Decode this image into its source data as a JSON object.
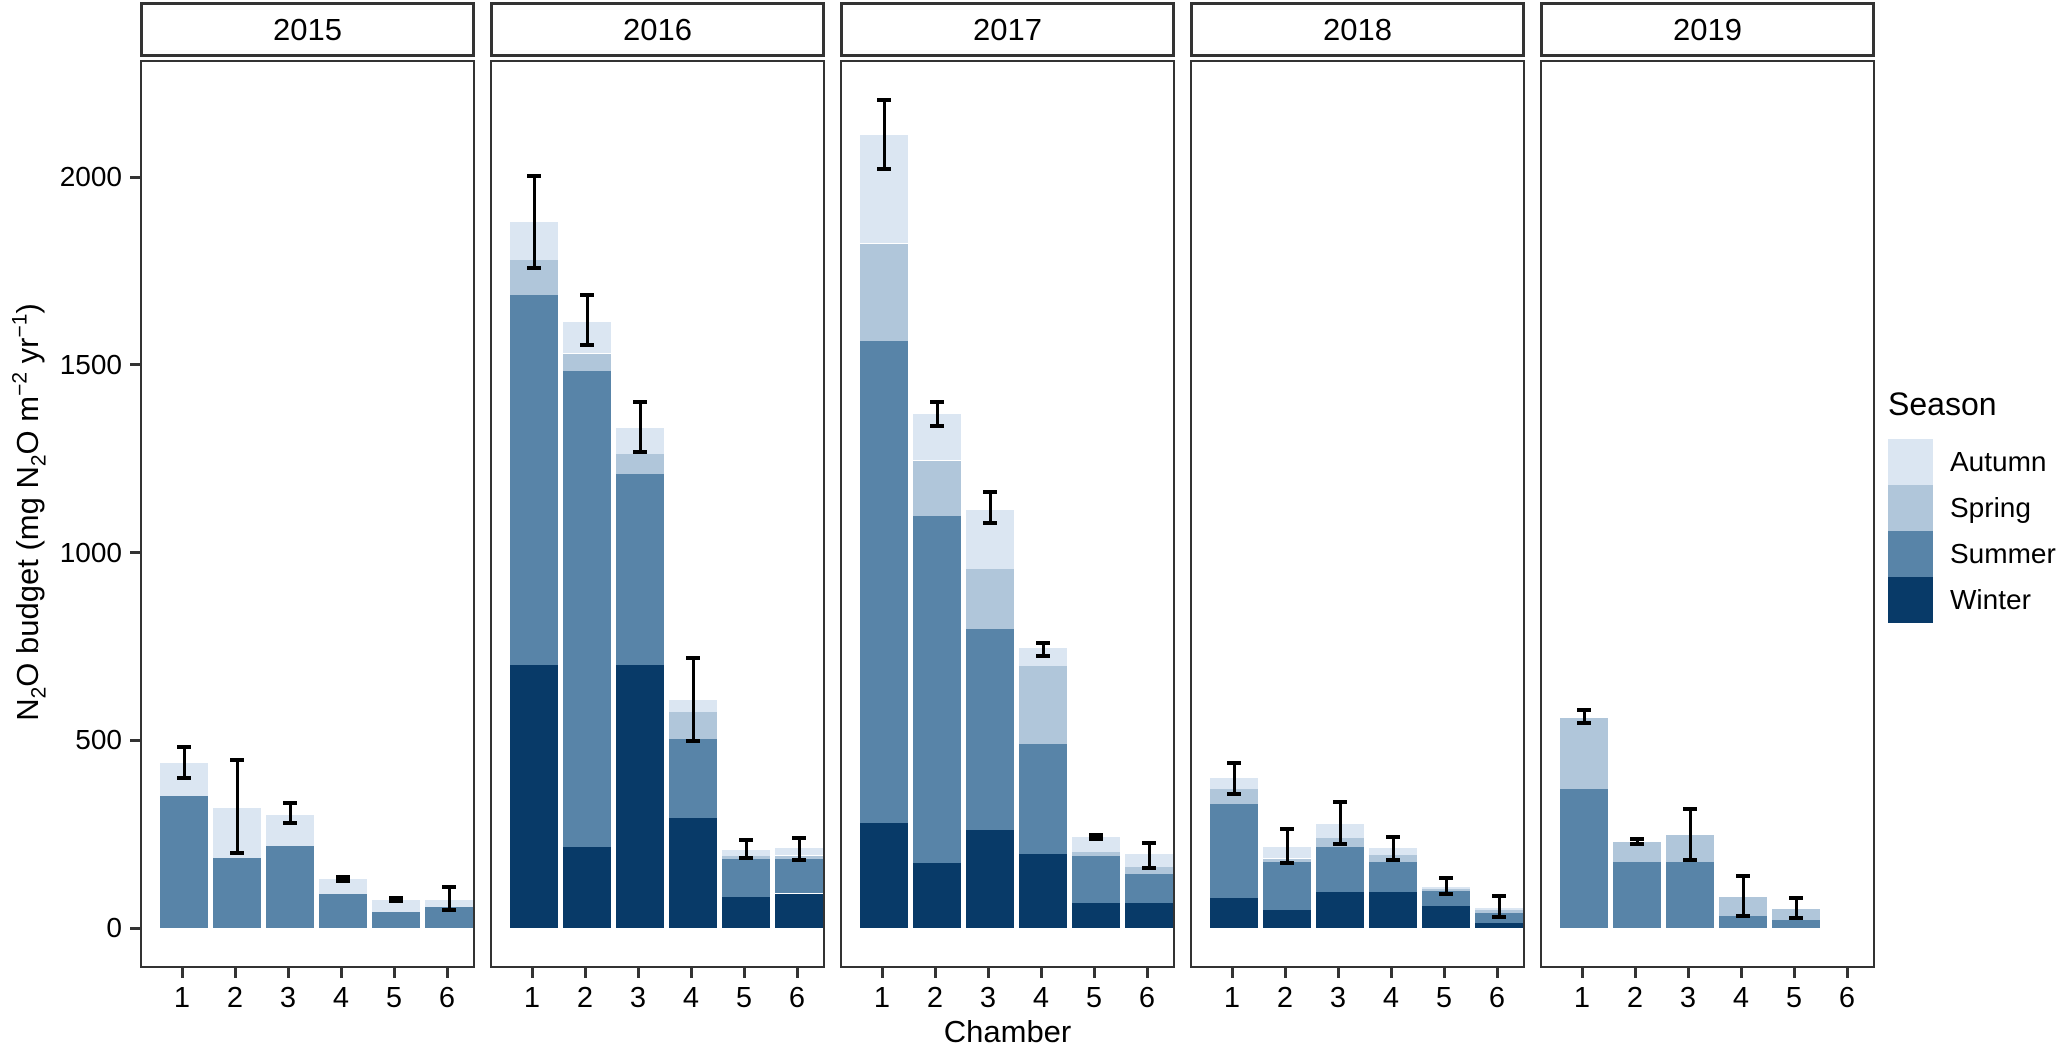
{
  "chart_data": {
    "type": "bar",
    "stacked": true,
    "faceted_by": "year",
    "xlabel": "Chamber",
    "ylabel_plain": "N2O budget (mg N2O m-2 yr-1)",
    "ylabel_parts": [
      {
        "t": "N"
      },
      {
        "sub": "2"
      },
      {
        "t": "O budget (mg N"
      },
      {
        "sub": "2"
      },
      {
        "t": "O m"
      },
      {
        "sup": "−2"
      },
      {
        "t": " yr"
      },
      {
        "sup": "−1"
      },
      {
        "t": ")"
      }
    ],
    "yticks": [
      0,
      500,
      1000,
      1500,
      2000
    ],
    "ylim": [
      -107,
      2311
    ],
    "xticks": [
      "1",
      "2",
      "3",
      "4",
      "5",
      "6"
    ],
    "grid": "off",
    "error_bars": "on totals, with caps",
    "legend": {
      "position": "right",
      "title": "Season",
      "entries": [
        "Autumn",
        "Spring",
        "Summer",
        "Winter"
      ]
    },
    "stack_order_bottom_to_top": [
      "Winter",
      "Summer",
      "Spring",
      "Autumn"
    ],
    "colors": {
      "Autumn": "#dbe6f2",
      "Spring": "#b0c6da",
      "Summer": "#5884a8",
      "Winter": "#083a68"
    },
    "facets": [
      {
        "year": "2015",
        "bars": [
          {
            "chamber": "1",
            "Winter": 0,
            "Summer": 352,
            "Spring": 0,
            "Autumn": 88,
            "err": [
              399,
              481
            ]
          },
          {
            "chamber": "2",
            "Winter": 0,
            "Summer": 186,
            "Spring": 0,
            "Autumn": 135,
            "err": [
              199,
              447
            ]
          },
          {
            "chamber": "3",
            "Winter": 0,
            "Summer": 218,
            "Spring": 0,
            "Autumn": 83,
            "err": [
              279,
              332
            ]
          },
          {
            "chamber": "4",
            "Winter": 0,
            "Summer": 90,
            "Spring": 0,
            "Autumn": 40,
            "err": [
              125,
              136
            ]
          },
          {
            "chamber": "5",
            "Winter": 0,
            "Summer": 43,
            "Spring": 0,
            "Autumn": 33,
            "err": [
              71,
              81
            ]
          },
          {
            "chamber": "6",
            "Winter": 0,
            "Summer": 55,
            "Spring": 0,
            "Autumn": 20,
            "err": [
              48,
              110
            ]
          }
        ]
      },
      {
        "year": "2016",
        "bars": [
          {
            "chamber": "1",
            "Winter": 700,
            "Summer": 985,
            "Spring": 95,
            "Autumn": 100,
            "err": [
              1759,
              2004
            ]
          },
          {
            "chamber": "2",
            "Winter": 216,
            "Summer": 1268,
            "Spring": 46,
            "Autumn": 84,
            "err": [
              1553,
              1686
            ]
          },
          {
            "chamber": "3",
            "Winter": 700,
            "Summer": 509,
            "Spring": 53,
            "Autumn": 71,
            "err": [
              1268,
              1402
            ]
          },
          {
            "chamber": "4",
            "Winter": 292,
            "Summer": 212,
            "Spring": 71,
            "Autumn": 31,
            "err": [
              499,
              718
            ]
          },
          {
            "chamber": "5",
            "Winter": 83,
            "Summer": 102,
            "Spring": 8,
            "Autumn": 16,
            "err": [
              186,
              234
            ]
          },
          {
            "chamber": "6",
            "Winter": 92,
            "Summer": 93,
            "Spring": 8,
            "Autumn": 19,
            "err": [
              181,
              239
            ]
          }
        ]
      },
      {
        "year": "2017",
        "bars": [
          {
            "chamber": "1",
            "Winter": 280,
            "Summer": 1284,
            "Spring": 259,
            "Autumn": 288,
            "err": [
              2022,
              2204
            ]
          },
          {
            "chamber": "2",
            "Winter": 172,
            "Summer": 926,
            "Spring": 147,
            "Autumn": 124,
            "err": [
              1338,
              1400
            ]
          },
          {
            "chamber": "3",
            "Winter": 262,
            "Summer": 535,
            "Spring": 159,
            "Autumn": 157,
            "err": [
              1079,
              1162
            ]
          },
          {
            "chamber": "4",
            "Winter": 198,
            "Summer": 293,
            "Spring": 206,
            "Autumn": 48,
            "err": [
              724,
              760
            ]
          },
          {
            "chamber": "5",
            "Winter": 66,
            "Summer": 125,
            "Spring": 12,
            "Autumn": 40,
            "err": [
              237,
              249
            ]
          },
          {
            "chamber": "6",
            "Winter": 66,
            "Summer": 79,
            "Spring": 18,
            "Autumn": 33,
            "err": [
              159,
              227
            ]
          }
        ]
      },
      {
        "year": "2018",
        "bars": [
          {
            "chamber": "1",
            "Winter": 80,
            "Summer": 251,
            "Spring": 40,
            "Autumn": 29,
            "err": [
              358,
              440
            ]
          },
          {
            "chamber": "2",
            "Winter": 48,
            "Summer": 128,
            "Spring": 9,
            "Autumn": 31,
            "err": [
              172,
              265
            ]
          },
          {
            "chamber": "3",
            "Winter": 97,
            "Summer": 119,
            "Spring": 23,
            "Autumn": 39,
            "err": [
              223,
              336
            ]
          },
          {
            "chamber": "4",
            "Winter": 97,
            "Summer": 79,
            "Spring": 18,
            "Autumn": 18,
            "err": [
              181,
              243
            ]
          },
          {
            "chamber": "5",
            "Winter": 59,
            "Summer": 39,
            "Spring": 5,
            "Autumn": 7,
            "err": [
              90,
              134
            ]
          },
          {
            "chamber": "6",
            "Winter": 14,
            "Summer": 27,
            "Spring": 6,
            "Autumn": 7,
            "err": [
              30,
              85
            ]
          }
        ]
      },
      {
        "year": "2019",
        "bars": [
          {
            "chamber": "1",
            "Winter": 0,
            "Summer": 371,
            "Spring": 189,
            "Autumn": 0,
            "err": [
              546,
              581
            ]
          },
          {
            "chamber": "2",
            "Winter": 0,
            "Summer": 176,
            "Spring": 54,
            "Autumn": 0,
            "err": [
              225,
              237
            ]
          },
          {
            "chamber": "3",
            "Winter": 0,
            "Summer": 176,
            "Spring": 71,
            "Autumn": 0,
            "err": [
              182,
              318
            ]
          },
          {
            "chamber": "4",
            "Winter": 0,
            "Summer": 32,
            "Spring": 52,
            "Autumn": 0,
            "err": [
              32,
              138
            ]
          },
          {
            "chamber": "5",
            "Winter": 0,
            "Summer": 21,
            "Spring": 29,
            "Autumn": 0,
            "err": [
              26,
              79
            ]
          },
          {
            "chamber": "6",
            "Winter": 0,
            "Summer": 0,
            "Spring": 0,
            "Autumn": 0,
            "err": null
          }
        ]
      }
    ]
  }
}
